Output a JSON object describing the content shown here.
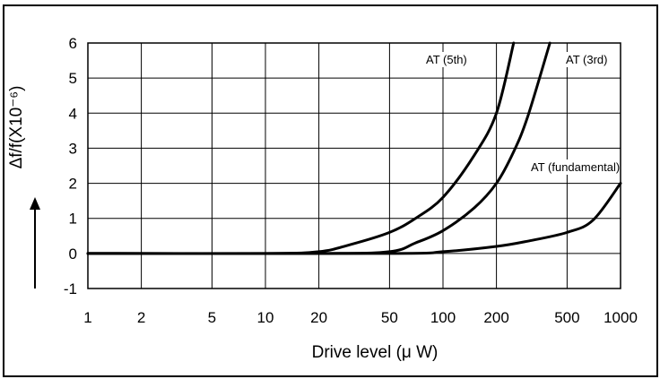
{
  "chart_data": {
    "type": "line",
    "xlabel": "Drive level (μ W)",
    "ylabel": "Δf/f(X10⁻⁶)",
    "x_scale": "log",
    "xlim": [
      1,
      1000
    ],
    "ylim": [
      -1,
      6
    ],
    "x_ticks": [
      "1",
      "2",
      "5",
      "10",
      "20",
      "50",
      "100",
      "200",
      "500",
      "1000"
    ],
    "y_ticks": [
      "6",
      "5",
      "4",
      "3",
      "2",
      "1",
      "0",
      "-1"
    ],
    "grid": true,
    "series": [
      {
        "name": "AT (5th)",
        "color": "#000000",
        "x": [
          1,
          10,
          20,
          30,
          50,
          70,
          100,
          150,
          200,
          250
        ],
        "y": [
          0,
          0,
          0.05,
          0.25,
          0.6,
          1.0,
          1.6,
          2.8,
          4.0,
          6.0
        ]
      },
      {
        "name": "AT (3rd)",
        "color": "#000000",
        "x": [
          1,
          20,
          50,
          70,
          100,
          150,
          200,
          250,
          300,
          400
        ],
        "y": [
          0,
          0,
          0.05,
          0.3,
          0.65,
          1.3,
          2.0,
          2.9,
          3.9,
          6.0
        ]
      },
      {
        "name": "AT (fundamental)",
        "color": "#000000",
        "x": [
          1,
          50,
          100,
          200,
          300,
          500,
          700,
          1000
        ],
        "y": [
          0,
          0,
          0.05,
          0.2,
          0.35,
          0.6,
          0.95,
          2.0
        ]
      }
    ]
  }
}
